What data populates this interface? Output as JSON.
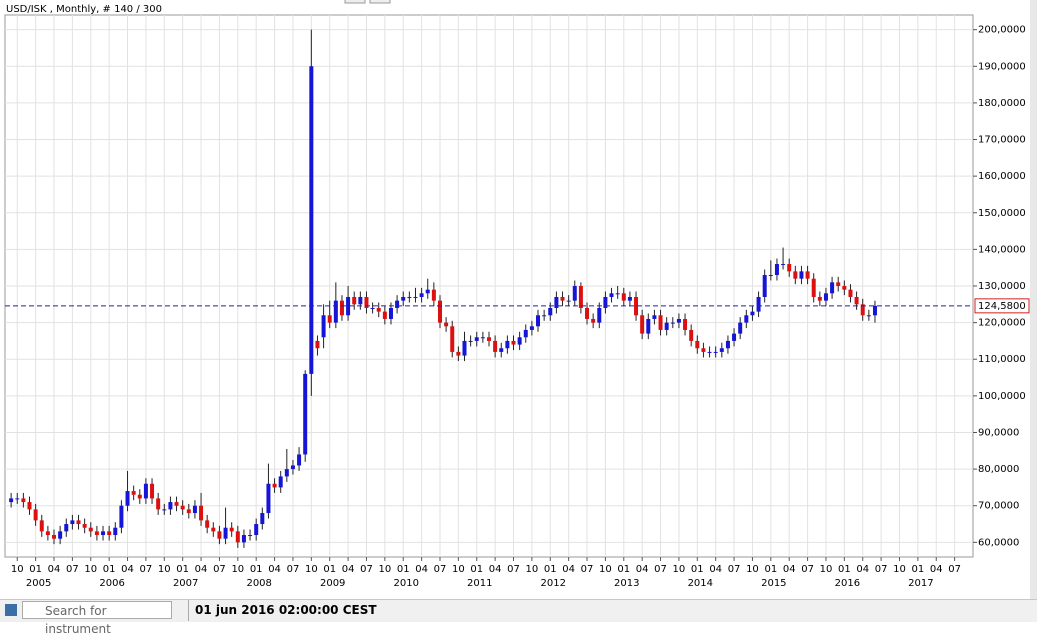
{
  "chart_data": {
    "type": "candlestick",
    "title": "USD/ISK , Monthly, # 140 / 300",
    "categories": [
      "2004-09",
      "2004-10",
      "2004-11",
      "2004-12",
      "2005-01",
      "2005-02",
      "2005-03",
      "2005-04",
      "2005-05",
      "2005-06",
      "2005-07",
      "2005-08",
      "2005-09",
      "2005-10",
      "2005-11",
      "2005-12",
      "2006-01",
      "2006-02",
      "2006-03",
      "2006-04",
      "2006-05",
      "2006-06",
      "2006-07",
      "2006-08",
      "2006-09",
      "2006-10",
      "2006-11",
      "2006-12",
      "2007-01",
      "2007-02",
      "2007-03",
      "2007-04",
      "2007-05",
      "2007-06",
      "2007-07",
      "2007-08",
      "2007-09",
      "2007-10",
      "2007-11",
      "2007-12",
      "2008-01",
      "2008-02",
      "2008-03",
      "2008-04",
      "2008-05",
      "2008-06",
      "2008-07",
      "2008-08",
      "2008-09",
      "2008-10",
      "2008-11",
      "2008-12",
      "2009-01",
      "2009-02",
      "2009-03",
      "2009-04",
      "2009-05",
      "2009-06",
      "2009-07",
      "2009-08",
      "2009-09",
      "2009-10",
      "2009-11",
      "2009-12",
      "2010-01",
      "2010-02",
      "2010-03",
      "2010-04",
      "2010-05",
      "2010-06",
      "2010-07",
      "2010-08",
      "2010-09",
      "2010-10",
      "2010-11",
      "2010-12",
      "2011-01",
      "2011-02",
      "2011-03",
      "2011-04",
      "2011-05",
      "2011-06",
      "2011-07",
      "2011-08",
      "2011-09",
      "2011-10",
      "2011-11",
      "2011-12",
      "2012-01",
      "2012-02",
      "2012-03",
      "2012-04",
      "2012-05",
      "2012-06",
      "2012-07",
      "2012-08",
      "2012-09",
      "2012-10",
      "2012-11",
      "2012-12",
      "2013-01",
      "2013-02",
      "2013-03",
      "2013-04",
      "2013-05",
      "2013-06",
      "2013-07",
      "2013-08",
      "2013-09",
      "2013-10",
      "2013-11",
      "2013-12",
      "2014-01",
      "2014-02",
      "2014-03",
      "2014-04",
      "2014-05",
      "2014-06",
      "2014-07",
      "2014-08",
      "2014-09",
      "2014-10",
      "2014-11",
      "2014-12",
      "2015-01",
      "2015-02",
      "2015-03",
      "2015-04",
      "2015-05",
      "2015-06",
      "2015-07",
      "2015-08",
      "2015-09",
      "2015-10",
      "2015-11",
      "2015-12",
      "2016-01",
      "2016-02",
      "2016-03",
      "2016-04",
      "2016-05",
      "2016-06"
    ],
    "open": [
      71,
      72,
      72,
      71,
      69,
      66,
      63,
      62,
      61,
      63,
      65,
      66,
      65,
      64,
      63,
      62,
      63,
      62,
      64,
      70,
      74,
      73,
      72,
      76,
      72,
      69,
      69,
      71,
      70,
      69,
      68,
      70,
      66,
      64,
      63,
      61,
      64,
      63,
      60,
      62,
      62,
      65,
      68,
      76,
      75,
      78,
      80,
      81,
      84,
      106,
      115,
      116,
      122,
      120,
      126,
      122,
      127,
      125,
      127,
      124,
      124,
      123,
      121,
      124,
      126,
      127,
      127,
      127,
      128,
      129,
      126,
      120,
      119,
      112,
      111,
      115,
      115,
      116,
      116,
      115,
      112,
      113,
      115,
      114,
      116,
      118,
      119,
      122,
      122,
      124,
      127,
      126,
      126,
      130,
      124,
      121,
      120,
      124,
      127,
      128,
      128,
      126,
      127,
      122,
      117,
      121,
      122,
      118,
      120,
      120,
      121,
      118,
      115,
      113,
      112,
      112,
      112,
      113,
      115,
      117,
      120,
      122,
      123,
      127,
      133,
      133,
      136,
      136,
      134,
      132,
      134,
      132,
      127,
      126,
      128,
      131,
      130,
      129,
      127,
      125,
      122,
      122
    ],
    "high": [
      73.5,
      73.5,
      73.5,
      72.5,
      70.5,
      67.5,
      64.5,
      63.5,
      64.5,
      66.5,
      67.5,
      67.5,
      66.5,
      65.5,
      64.5,
      64.5,
      64.5,
      65.5,
      71.5,
      79.5,
      75.5,
      74.5,
      77.5,
      77.5,
      73.5,
      70.5,
      72.5,
      72.5,
      71.5,
      70.5,
      71.5,
      73.5,
      67.5,
      65.5,
      64.5,
      69.5,
      65.5,
      64.5,
      63.5,
      63.5,
      66.5,
      69.5,
      81.5,
      77.5,
      79.5,
      85.5,
      82.5,
      86,
      107,
      200,
      116.5,
      125,
      126,
      131,
      127.5,
      130,
      128.5,
      128.5,
      128.5,
      125.5,
      125.5,
      124.5,
      125.5,
      127.5,
      128.5,
      128.5,
      129.5,
      129.5,
      132,
      131,
      127.5,
      121.5,
      120.5,
      113.5,
      117.5,
      116.5,
      117.5,
      117.5,
      117.5,
      116.5,
      114.5,
      116.5,
      116.5,
      117.5,
      119.5,
      120.5,
      123.5,
      123.5,
      125.5,
      128.5,
      128.5,
      127.5,
      131.5,
      131,
      125.5,
      122.5,
      125.5,
      128.5,
      129.5,
      130,
      129.5,
      128.5,
      128.5,
      123.5,
      122.5,
      123.5,
      123.5,
      121.5,
      121.5,
      122.5,
      122.5,
      119.5,
      116.5,
      114.5,
      113.5,
      113.5,
      114.5,
      116.5,
      118.5,
      121.5,
      123.5,
      124.5,
      128.5,
      134.5,
      137,
      137.5,
      140.5,
      137.5,
      135.5,
      135.5,
      135.5,
      133.5,
      128.5,
      129.5,
      132.5,
      132.5,
      131.5,
      130.5,
      128.5,
      126.5,
      123.5,
      126
    ],
    "low": [
      69.5,
      70.5,
      69.5,
      67.5,
      64.5,
      61.5,
      60.5,
      59.5,
      59.5,
      61.5,
      63.5,
      63.5,
      62.5,
      61.5,
      60.5,
      60.5,
      60.5,
      60.5,
      62.5,
      68.5,
      71.5,
      70.5,
      70.5,
      70.5,
      67.5,
      67.5,
      67.5,
      68.5,
      67.5,
      66.5,
      66.5,
      64.5,
      62.5,
      61.5,
      59.5,
      59.5,
      61.5,
      58.5,
      58.5,
      60.5,
      60.5,
      63.5,
      66.5,
      73.5,
      73.5,
      76.5,
      78.5,
      79.5,
      82,
      100,
      111,
      113,
      118.5,
      118.5,
      120.5,
      120.5,
      123.5,
      123.5,
      122.5,
      122.5,
      121.5,
      119.5,
      119.5,
      122.5,
      124.5,
      125.5,
      125.5,
      125.5,
      126.5,
      124.5,
      118.5,
      117.5,
      110.5,
      109.5,
      109.5,
      113.5,
      113.5,
      114.5,
      113.5,
      110.5,
      110.5,
      111.5,
      112.5,
      112.5,
      114.5,
      116.5,
      117.5,
      120.5,
      120.5,
      122.5,
      124.5,
      124.5,
      124.5,
      122.5,
      119.5,
      118.5,
      118.5,
      122.5,
      125.5,
      126.5,
      124.5,
      124.5,
      120.5,
      115.5,
      115.5,
      119.5,
      116.5,
      116.5,
      118.5,
      118.5,
      116.5,
      113.5,
      111.5,
      110.5,
      110.5,
      110.5,
      110.5,
      111.5,
      113.5,
      115.5,
      118.5,
      120.5,
      121.5,
      125.5,
      131.5,
      131.5,
      134.5,
      132.5,
      130.5,
      130.5,
      130.5,
      125.5,
      124.5,
      124.5,
      126.5,
      128.5,
      127.5,
      125.5,
      123.5,
      120.5,
      120.5,
      120
    ],
    "close": [
      72,
      72,
      71,
      69,
      66,
      63,
      62,
      61,
      63,
      65,
      66,
      65,
      64,
      63,
      62,
      63,
      62,
      64,
      70,
      74,
      73,
      72,
      76,
      72,
      69,
      69,
      71,
      70,
      69,
      68,
      70,
      66,
      64,
      63,
      61,
      64,
      63,
      60,
      62,
      62,
      65,
      68,
      76,
      75,
      78,
      80,
      81,
      84,
      106,
      190,
      113,
      122,
      120,
      126,
      122,
      127,
      125,
      127,
      124,
      124,
      123,
      121,
      124,
      126,
      127,
      127,
      127,
      128,
      129,
      126,
      120,
      119,
      112,
      111,
      115,
      115,
      116,
      116,
      115,
      112,
      113,
      115,
      114,
      116,
      118,
      119,
      122,
      122,
      124,
      127,
      126,
      126,
      130,
      124,
      121,
      120,
      124,
      127,
      128,
      128,
      126,
      127,
      122,
      117,
      121,
      122,
      118,
      120,
      120,
      121,
      118,
      115,
      113,
      112,
      112,
      112,
      113,
      115,
      117,
      120,
      122,
      123,
      127,
      133,
      133,
      136,
      136,
      134,
      132,
      134,
      132,
      127,
      126,
      128,
      131,
      130,
      129,
      127,
      125,
      122,
      122,
      124.58
    ],
    "up_color": "#1515d8",
    "down_color": "#dd1010",
    "ylim": [
      56,
      204
    ],
    "yticks": [
      {
        "value": 60,
        "label": "60,0000"
      },
      {
        "value": 70,
        "label": "70,0000"
      },
      {
        "value": 80,
        "label": "80,0000"
      },
      {
        "value": 90,
        "label": "90,0000"
      },
      {
        "value": 100,
        "label": "100,0000"
      },
      {
        "value": 110,
        "label": "110,0000"
      },
      {
        "value": 120,
        "label": "120,0000"
      },
      {
        "value": 130,
        "label": "130,0000"
      },
      {
        "value": 140,
        "label": "140,0000"
      },
      {
        "value": 150,
        "label": "150,0000"
      },
      {
        "value": 160,
        "label": "160,0000"
      },
      {
        "value": 170,
        "label": "170,0000"
      },
      {
        "value": 180,
        "label": "180,0000"
      },
      {
        "value": 190,
        "label": "190,0000"
      },
      {
        "value": 200,
        "label": "200,0000"
      }
    ],
    "xlim": [
      "2004-08",
      "2017-10"
    ],
    "xticks": [
      {
        "value": "2004-10",
        "label": "10"
      },
      {
        "value": "2005-01",
        "label": "01"
      },
      {
        "value": "2005-04",
        "label": "04"
      },
      {
        "value": "2005-07",
        "label": "07"
      },
      {
        "value": "2005-10",
        "label": "10"
      },
      {
        "value": "2006-01",
        "label": "01"
      },
      {
        "value": "2006-04",
        "label": "04"
      },
      {
        "value": "2006-07",
        "label": "07"
      },
      {
        "value": "2006-10",
        "label": "10"
      },
      {
        "value": "2007-01",
        "label": "01"
      },
      {
        "value": "2007-04",
        "label": "04"
      },
      {
        "value": "2007-07",
        "label": "07"
      },
      {
        "value": "2007-10",
        "label": "10"
      },
      {
        "value": "2008-01",
        "label": "01"
      },
      {
        "value": "2008-04",
        "label": "04"
      },
      {
        "value": "2008-07",
        "label": "07"
      },
      {
        "value": "2008-10",
        "label": "10"
      },
      {
        "value": "2009-01",
        "label": "01"
      },
      {
        "value": "2009-04",
        "label": "04"
      },
      {
        "value": "2009-07",
        "label": "07"
      },
      {
        "value": "2009-10",
        "label": "10"
      },
      {
        "value": "2010-01",
        "label": "01"
      },
      {
        "value": "2010-04",
        "label": "04"
      },
      {
        "value": "2010-07",
        "label": "07"
      },
      {
        "value": "2010-10",
        "label": "10"
      },
      {
        "value": "2011-01",
        "label": "01"
      },
      {
        "value": "2011-04",
        "label": "04"
      },
      {
        "value": "2011-07",
        "label": "07"
      },
      {
        "value": "2011-10",
        "label": "10"
      },
      {
        "value": "2012-01",
        "label": "01"
      },
      {
        "value": "2012-04",
        "label": "04"
      },
      {
        "value": "2012-07",
        "label": "07"
      },
      {
        "value": "2012-10",
        "label": "10"
      },
      {
        "value": "2013-01",
        "label": "01"
      },
      {
        "value": "2013-04",
        "label": "04"
      },
      {
        "value": "2013-07",
        "label": "07"
      },
      {
        "value": "2013-10",
        "label": "10"
      },
      {
        "value": "2014-01",
        "label": "01"
      },
      {
        "value": "2014-04",
        "label": "04"
      },
      {
        "value": "2014-07",
        "label": "07"
      },
      {
        "value": "2014-10",
        "label": "10"
      },
      {
        "value": "2015-01",
        "label": "01"
      },
      {
        "value": "2015-04",
        "label": "04"
      },
      {
        "value": "2015-07",
        "label": "07"
      },
      {
        "value": "2015-10",
        "label": "10"
      },
      {
        "value": "2016-01",
        "label": "01"
      },
      {
        "value": "2016-04",
        "label": "04"
      },
      {
        "value": "2016-07",
        "label": "07"
      },
      {
        "value": "2016-10",
        "label": "10"
      },
      {
        "value": "2017-01",
        "label": "01"
      },
      {
        "value": "2017-04",
        "label": "04"
      },
      {
        "value": "2017-07",
        "label": "07"
      }
    ],
    "year_labels": [
      {
        "value": "2005-01",
        "label": "2005"
      },
      {
        "value": "2006-01",
        "label": "2006"
      },
      {
        "value": "2007-01",
        "label": "2007"
      },
      {
        "value": "2008-01",
        "label": "2008"
      },
      {
        "value": "2009-01",
        "label": "2009"
      },
      {
        "value": "2010-01",
        "label": "2010"
      },
      {
        "value": "2011-01",
        "label": "2011"
      },
      {
        "value": "2012-01",
        "label": "2012"
      },
      {
        "value": "2013-01",
        "label": "2013"
      },
      {
        "value": "2014-01",
        "label": "2014"
      },
      {
        "value": "2015-01",
        "label": "2015"
      },
      {
        "value": "2016-01",
        "label": "2016"
      },
      {
        "value": "2017-01",
        "label": "2017"
      }
    ],
    "last_price": {
      "value": 124.58,
      "label": "124,5800"
    },
    "grid": true
  },
  "status_bar": {
    "search_placeholder": "Search for instrument",
    "timestamp": "01 jun 2016 02:00:00 CEST"
  }
}
